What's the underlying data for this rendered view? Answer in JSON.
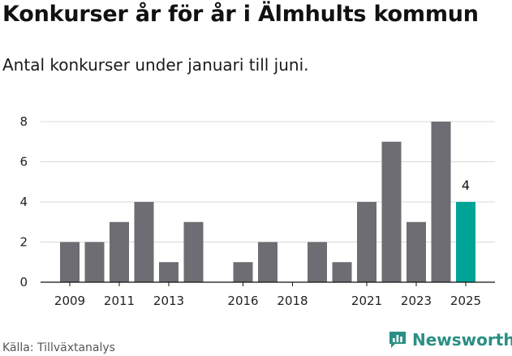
{
  "title": "Konkurser år för år i Älmhults kommun",
  "subtitle": "Antal konkurser under januari till juni.",
  "source": "Källa: Tillväxtanalys",
  "brand": "Newsworthy",
  "colors": {
    "bar": "#6e6d73",
    "highlight": "#00a497",
    "grid": "#d8d8d8",
    "brand": "#2a8f84"
  },
  "chart_data": {
    "type": "bar",
    "x": [
      2009,
      2010,
      2011,
      2012,
      2013,
      2014,
      2015,
      2016,
      2017,
      2018,
      2019,
      2020,
      2021,
      2022,
      2023,
      2024,
      2025
    ],
    "values": [
      2,
      2,
      3,
      4,
      1,
      3,
      0,
      1,
      2,
      0,
      2,
      1,
      4,
      7,
      3,
      8,
      4
    ],
    "highlight_index": 16,
    "x_tick_labels": [
      "2009",
      "2011",
      "2013",
      "2016",
      "2018",
      "2021",
      "2023",
      "2025"
    ],
    "y_ticks": [
      0,
      2,
      4,
      6,
      8
    ],
    "ylim": [
      0,
      8
    ],
    "data_labels": [
      {
        "x": 2025,
        "text": "4"
      }
    ],
    "grid": true
  }
}
